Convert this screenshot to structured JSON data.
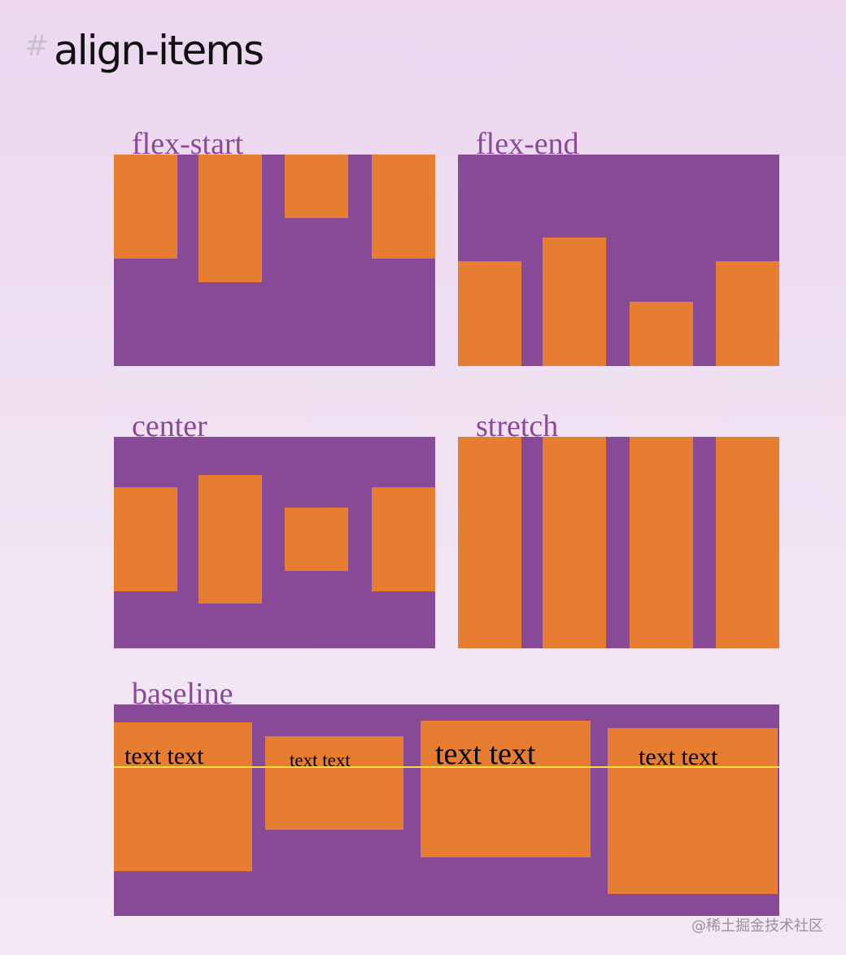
{
  "heading": {
    "hash": "#",
    "title": "align-items"
  },
  "colors": {
    "container": "#884a97",
    "item": "#e77d31",
    "label": "#8a4a98",
    "baseline": "#f4df3c"
  },
  "demos": {
    "flex_start": {
      "label": "flex-start",
      "align": "flex-start",
      "item_count": 4
    },
    "flex_end": {
      "label": "flex-end",
      "align": "flex-end",
      "item_count": 4
    },
    "center": {
      "label": "center",
      "align": "center",
      "item_count": 4
    },
    "stretch": {
      "label": "stretch",
      "align": "stretch",
      "item_count": 4
    },
    "baseline": {
      "label": "baseline",
      "align": "baseline",
      "items": [
        {
          "text": "text text"
        },
        {
          "text": "text text"
        },
        {
          "text": "text text"
        },
        {
          "text": "text text"
        }
      ]
    }
  },
  "watermark": "@稀土掘金技术社区"
}
